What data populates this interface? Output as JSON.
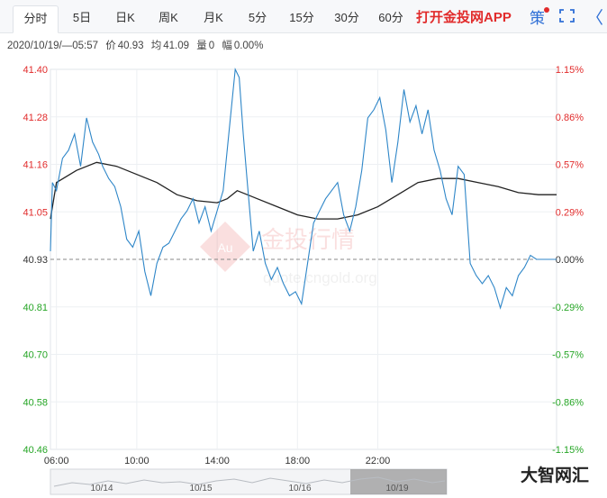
{
  "tabs": [
    {
      "label": "分时",
      "active": true
    },
    {
      "label": "5日"
    },
    {
      "label": "日K"
    },
    {
      "label": "周K"
    },
    {
      "label": "月K"
    },
    {
      "label": "5分"
    },
    {
      "label": "15分"
    },
    {
      "label": "30分"
    },
    {
      "label": "60分"
    }
  ],
  "toolbar": {
    "promo_label": "打开金投网APP",
    "strategy_label": "策",
    "expand_icon": "expand-icon",
    "more_label": "〈"
  },
  "info": {
    "datetime": "2020/10/19/—05:57",
    "price_label": "价",
    "price": "40.93",
    "avg_label": "均",
    "avg": "41.09",
    "volume_label": "量",
    "volume": "0",
    "change_label": "幅",
    "change": "0.00%"
  },
  "watermark": {
    "text": "金投行情",
    "url": "quote.cngold.org",
    "logo": "Au"
  },
  "brand": "大智网汇",
  "colors": {
    "up": "#e12b2b",
    "down": "#25a525",
    "price_line": "#2e86c8",
    "avg_line": "#222222",
    "baseline": "#888888"
  },
  "chart_data": {
    "type": "line",
    "y_ticks": [
      "41.40",
      "41.28",
      "41.16",
      "41.05",
      "40.93",
      "40.81",
      "40.70",
      "40.58",
      "40.46"
    ],
    "pct_ticks": [
      "1.15%",
      "0.86%",
      "0.57%",
      "0.29%",
      "0.00%",
      "-0.29%",
      "-0.57%",
      "-0.86%",
      "-1.15%"
    ],
    "ylim": [
      40.46,
      41.4
    ],
    "base_price": 40.93,
    "x_ticks": [
      "06:00",
      "10:00",
      "14:00",
      "18:00",
      "22:00"
    ],
    "x_tick_hours": [
      6,
      10,
      14,
      18,
      22
    ],
    "x_range_hours": [
      5.7,
      30.9
    ],
    "navigator_dates": [
      "10/14",
      "10/15",
      "10/16",
      "10/19"
    ],
    "series": [
      {
        "role": "price",
        "x": [
          5.7,
          5.8,
          6.0,
          6.3,
          6.6,
          6.9,
          7.2,
          7.5,
          7.8,
          8.1,
          8.3,
          8.6,
          8.9,
          9.2,
          9.5,
          9.8,
          10.1,
          10.4,
          10.7,
          11.0,
          11.3,
          11.6,
          11.9,
          12.2,
          12.5,
          12.8,
          13.1,
          13.4,
          13.7,
          14.0,
          14.3,
          14.6,
          14.9,
          15.1,
          15.3,
          15.5,
          15.8,
          16.1,
          16.4,
          16.7,
          17.0,
          17.3,
          17.6,
          17.9,
          18.2,
          18.5,
          18.8,
          19.1,
          19.4,
          19.7,
          20.0,
          20.3,
          20.6,
          20.9,
          21.2,
          21.5,
          21.8,
          22.1,
          22.4,
          22.7,
          23.0,
          23.3,
          23.6,
          23.9,
          24.2,
          24.5,
          24.8,
          25.1,
          25.4,
          25.7,
          26.0,
          26.3,
          26.6,
          26.9,
          27.2,
          27.5,
          27.8,
          28.1,
          28.4,
          28.7,
          29.0,
          29.3,
          29.6,
          29.9,
          30.2,
          30.5,
          30.9
        ],
        "y": [
          40.95,
          41.12,
          41.1,
          41.18,
          41.2,
          41.24,
          41.16,
          41.28,
          41.22,
          41.19,
          41.16,
          41.13,
          41.11,
          41.06,
          40.98,
          40.96,
          41.0,
          40.9,
          40.84,
          40.92,
          40.96,
          40.97,
          41.0,
          41.03,
          41.05,
          41.08,
          41.02,
          41.06,
          41.0,
          41.05,
          41.1,
          41.25,
          41.4,
          41.38,
          41.24,
          41.12,
          40.95,
          41.0,
          40.92,
          40.88,
          40.91,
          40.87,
          40.84,
          40.85,
          40.82,
          40.92,
          41.02,
          41.05,
          41.08,
          41.1,
          41.12,
          41.04,
          41.0,
          41.06,
          41.15,
          41.28,
          41.3,
          41.33,
          41.25,
          41.12,
          41.22,
          41.35,
          41.27,
          41.31,
          41.24,
          41.3,
          41.2,
          41.15,
          41.08,
          41.04,
          41.16,
          41.14,
          40.92,
          40.89,
          40.87,
          40.89,
          40.86,
          40.81,
          40.86,
          40.84,
          40.89,
          40.91,
          40.94,
          40.93,
          40.93,
          40.93,
          40.93
        ]
      },
      {
        "role": "average",
        "x": [
          5.7,
          6.0,
          7.0,
          8.0,
          9.0,
          10.0,
          11.0,
          12.0,
          13.0,
          14.0,
          14.5,
          15.0,
          15.5,
          16.0,
          17.0,
          18.0,
          19.0,
          20.0,
          21.0,
          22.0,
          23.0,
          24.0,
          25.0,
          26.0,
          27.0,
          28.0,
          29.0,
          30.0,
          30.9
        ],
        "y": [
          41.03,
          41.12,
          41.15,
          41.17,
          41.16,
          41.14,
          41.12,
          41.09,
          41.075,
          41.07,
          41.08,
          41.1,
          41.09,
          41.08,
          41.06,
          41.04,
          41.03,
          41.03,
          41.04,
          41.06,
          41.09,
          41.12,
          41.13,
          41.13,
          41.12,
          41.11,
          41.095,
          41.09,
          41.09
        ]
      }
    ]
  }
}
